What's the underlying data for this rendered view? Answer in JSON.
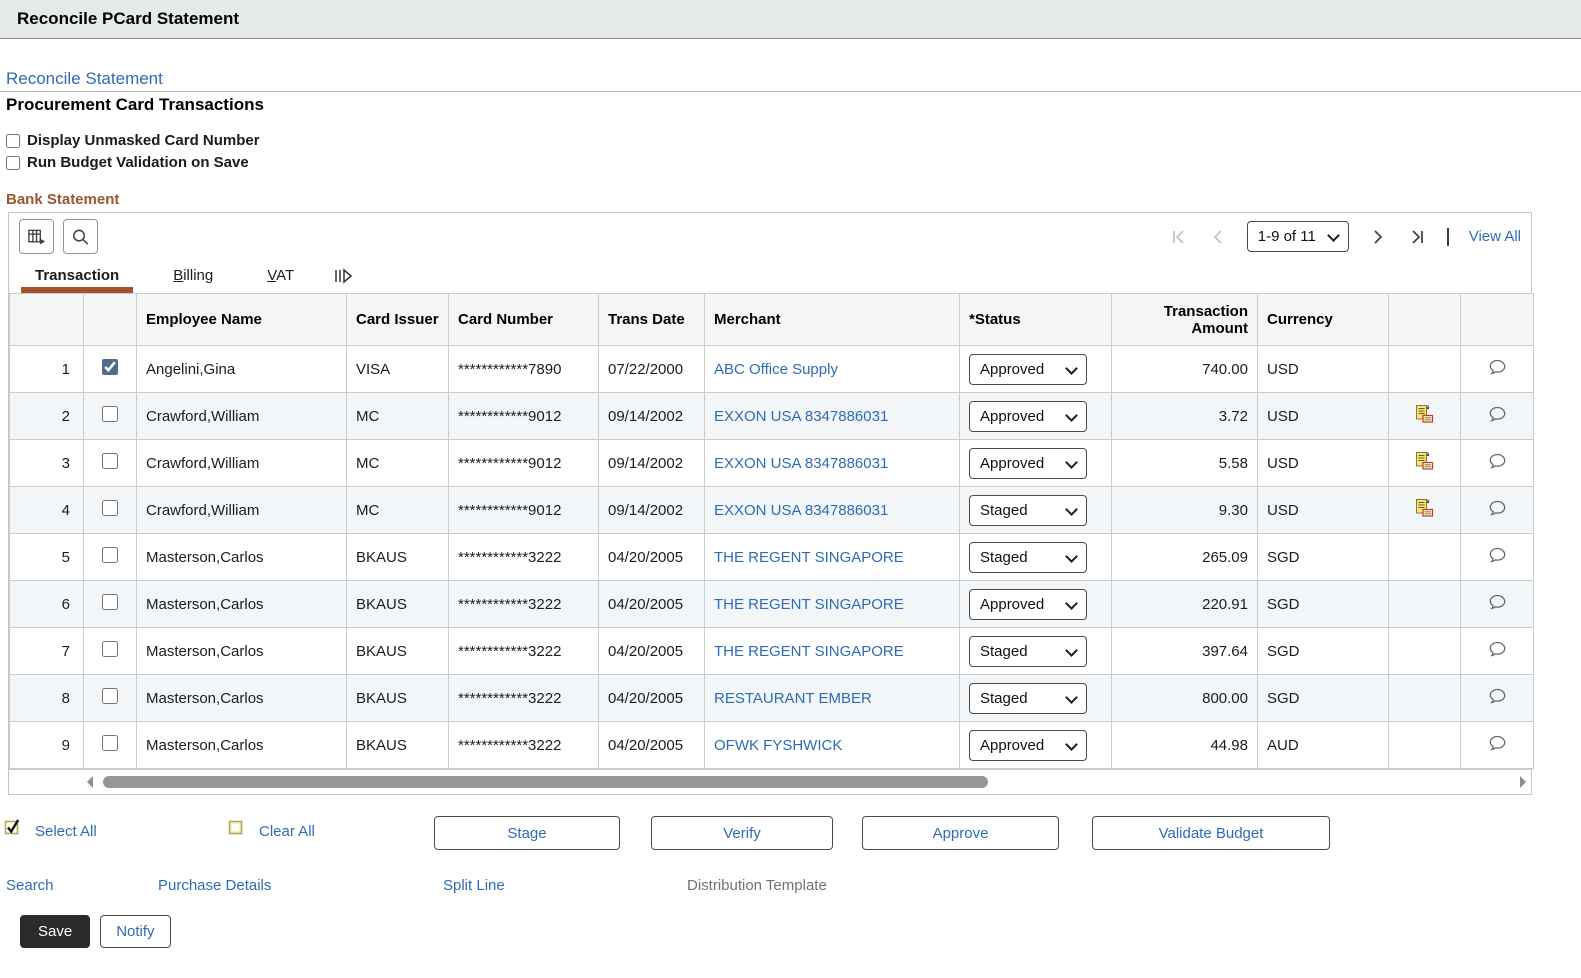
{
  "page": {
    "title": "Reconcile PCard Statement"
  },
  "nav": {
    "back_link": "Reconcile Statement",
    "section_title": "Procurement Card Transactions"
  },
  "options": [
    {
      "label": "Display Unmasked Card Number",
      "checked": false
    },
    {
      "label": "Run Budget Validation on Save",
      "checked": false
    }
  ],
  "grid": {
    "title": "Bank Statement",
    "toolbar_icons": [
      {
        "name": "grid-action-menu-icon"
      },
      {
        "name": "search-icon"
      }
    ],
    "pagination": {
      "first_icon": "first-page-icon",
      "prev_icon": "previous-page-icon",
      "range": "1-9 of 11",
      "next_icon": "next-page-icon",
      "last_icon": "last-page-icon",
      "view_all": "View All"
    },
    "tabs": [
      {
        "label": "Transaction",
        "active": true
      },
      {
        "label": "Billing",
        "accesskey": "B",
        "rest": "illing",
        "active": false
      },
      {
        "label": "VAT",
        "accesskey": "V",
        "rest": "AT",
        "active": false
      }
    ],
    "show_all_tabs_icon": "show-all-tabs-icon",
    "columns": {
      "employee": "Employee Name",
      "issuer": "Card Issuer",
      "card": "Card Number",
      "date": "Trans Date",
      "merchant": "Merchant",
      "status": "*Status",
      "amount": "Transaction Amount",
      "currency": "Currency"
    },
    "rows": [
      {
        "row": "1",
        "selected": true,
        "employee": "Angelini,Gina",
        "card_issuer": "VISA",
        "card_number": "************7890",
        "trans_date": "07/22/2000",
        "merchant": "ABC Office Supply",
        "status": "Approved",
        "amount": "740.00",
        "currency": "USD",
        "has_line_details": false
      },
      {
        "row": "2",
        "selected": false,
        "employee": "Crawford,William",
        "card_issuer": "MC",
        "card_number": "************9012",
        "trans_date": "09/14/2002",
        "merchant": "EXXON USA 8347886031",
        "status": "Approved",
        "amount": "3.72",
        "currency": "USD",
        "has_line_details": true
      },
      {
        "row": "3",
        "selected": false,
        "employee": "Crawford,William",
        "card_issuer": "MC",
        "card_number": "************9012",
        "trans_date": "09/14/2002",
        "merchant": "EXXON USA 8347886031",
        "status": "Approved",
        "amount": "5.58",
        "currency": "USD",
        "has_line_details": true
      },
      {
        "row": "4",
        "selected": false,
        "employee": "Crawford,William",
        "card_issuer": "MC",
        "card_number": "************9012",
        "trans_date": "09/14/2002",
        "merchant": "EXXON USA 8347886031",
        "status": "Staged",
        "amount": "9.30",
        "currency": "USD",
        "has_line_details": true
      },
      {
        "row": "5",
        "selected": false,
        "employee": "Masterson,Carlos",
        "card_issuer": "BKAUS",
        "card_number": "************3222",
        "trans_date": "04/20/2005",
        "merchant": "THE REGENT SINGAPORE",
        "status": "Staged",
        "amount": "265.09",
        "currency": "SGD",
        "has_line_details": false
      },
      {
        "row": "6",
        "selected": false,
        "employee": "Masterson,Carlos",
        "card_issuer": "BKAUS",
        "card_number": "************3222",
        "trans_date": "04/20/2005",
        "merchant": "THE REGENT SINGAPORE",
        "status": "Approved",
        "amount": "220.91",
        "currency": "SGD",
        "has_line_details": false
      },
      {
        "row": "7",
        "selected": false,
        "employee": "Masterson,Carlos",
        "card_issuer": "BKAUS",
        "card_number": "************3222",
        "trans_date": "04/20/2005",
        "merchant": "THE REGENT SINGAPORE",
        "status": "Staged",
        "amount": "397.64",
        "currency": "SGD",
        "has_line_details": false
      },
      {
        "row": "8",
        "selected": false,
        "employee": "Masterson,Carlos",
        "card_issuer": "BKAUS",
        "card_number": "************3222",
        "trans_date": "04/20/2005",
        "merchant": "RESTAURANT EMBER",
        "status": "Staged",
        "amount": "800.00",
        "currency": "SGD",
        "has_line_details": false
      },
      {
        "row": "9",
        "selected": false,
        "employee": "Masterson,Carlos",
        "card_issuer": "BKAUS",
        "card_number": "************3222",
        "trans_date": "04/20/2005",
        "merchant": "OFWK FYSHWICK",
        "status": "Approved",
        "amount": "44.98",
        "currency": "AUD",
        "has_line_details": false
      }
    ],
    "row_icons": {
      "line_details": "line-details-icon",
      "comments": "comments-icon"
    }
  },
  "footer": {
    "select_all": "Select All",
    "clear_all": "Clear All",
    "actions": [
      {
        "label": "Stage"
      },
      {
        "label": "Verify"
      },
      {
        "label": "Approve"
      },
      {
        "label": "Validate Budget"
      }
    ],
    "links": [
      {
        "label": "Search",
        "disabled": false
      },
      {
        "label": "Purchase Details",
        "disabled": false
      },
      {
        "label": "Split Line",
        "disabled": false
      },
      {
        "label": "Distribution Template",
        "disabled": true
      }
    ],
    "save": "Save",
    "notify": "Notify"
  },
  "colors": {
    "topbar_bg": "#e5e9e8",
    "link_blue": "#2d6cb5",
    "groupbox_brown": "#9c5633",
    "tab_underline": "#a5532c",
    "row_stripe": "#f2f6f8",
    "checkbox_accent": "#4f6d8c",
    "save_button_bg": "#2b2b2b",
    "disabled_text": "#6e7374"
  }
}
